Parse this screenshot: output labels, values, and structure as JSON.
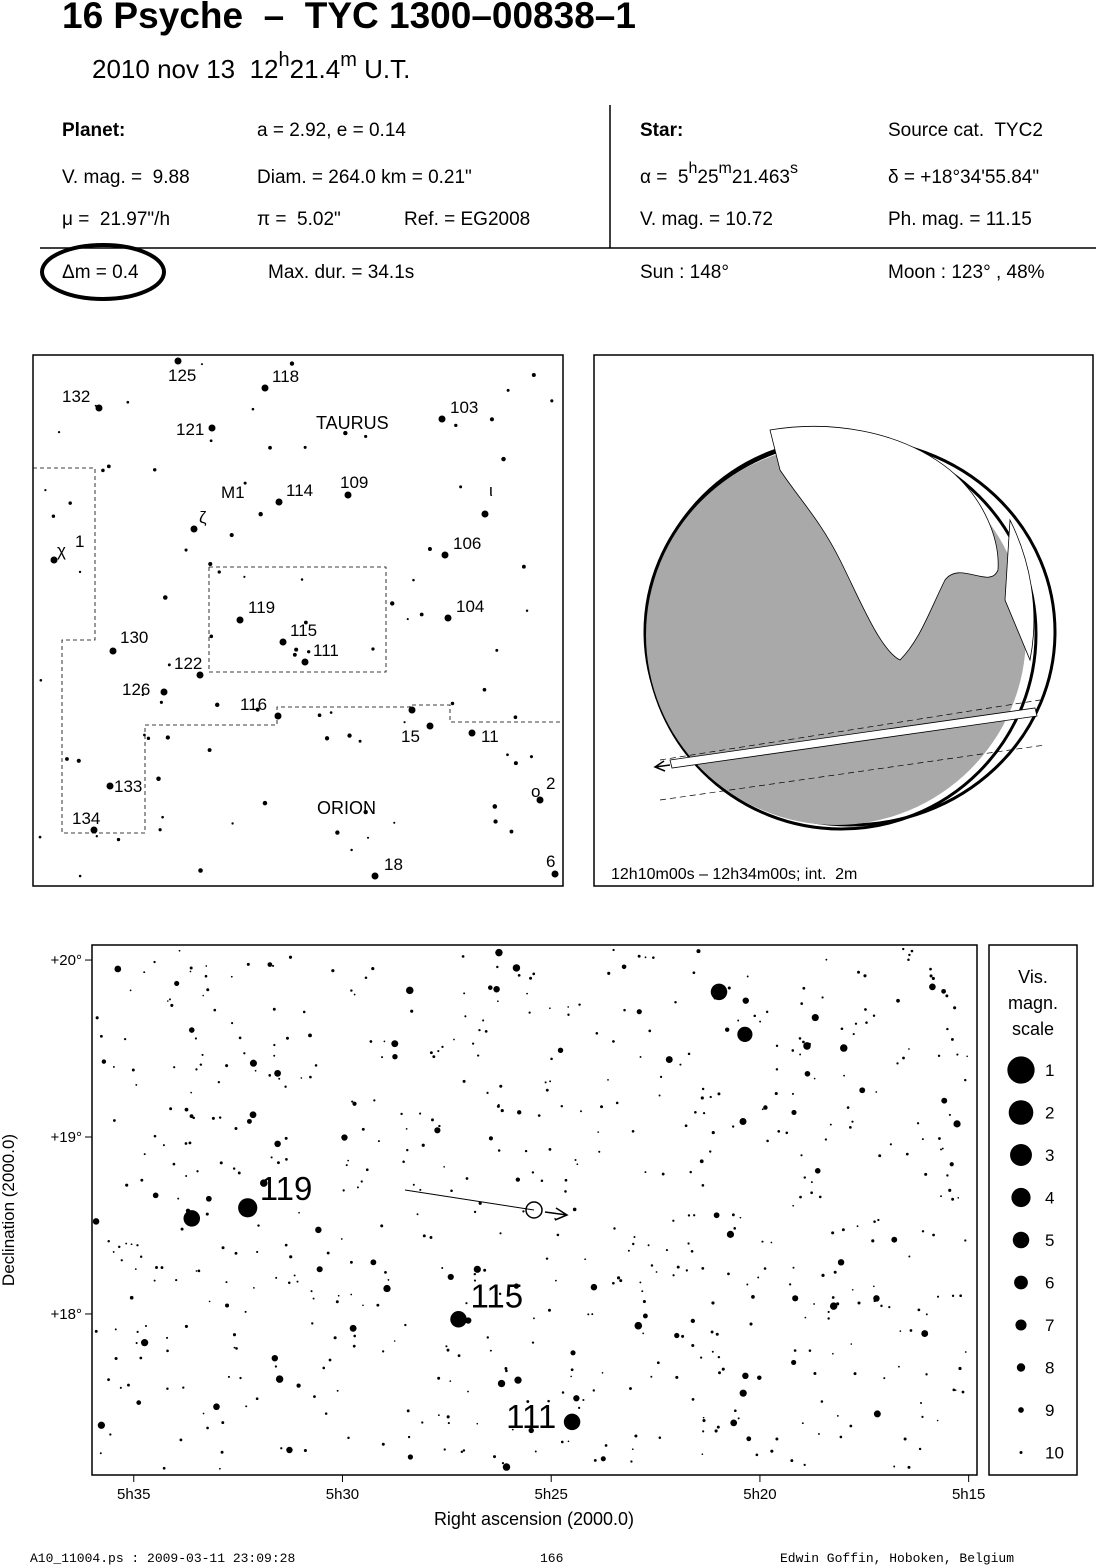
{
  "header": {
    "title": "16 Psyche  –  TYC 1300–00838–1",
    "date": "2010 nov 13  12",
    "date_h": "h",
    "date_min": "21.4",
    "date_m": "m",
    "date_ut": " U.T."
  },
  "planet": {
    "label": "Planet:",
    "orbit": "a = 2.92, e = 0.14",
    "vmag": "V. mag. =  9.88",
    "diam": "Diam. = 264.0 km = 0.21\"",
    "mu": "μ =  21.97\"/h",
    "pi": "π =  5.02\"",
    "ref": "Ref. = EG2008"
  },
  "star": {
    "label": "Star:",
    "source": "Source cat.  TYC2",
    "alpha": "α =  5",
    "alpha_h": "h",
    "alpha_min": "25",
    "alpha_m": "m",
    "alpha_sec": "21.463",
    "alpha_s": "s",
    "delta": "δ = +18°34'55.84\"",
    "vmag": "V. mag. = 10.72",
    "phmag": "Ph. mag. = 11.15"
  },
  "event": {
    "dm": "Δm = 0.4",
    "maxdur": "Max. dur. = 34.1s",
    "sun": "Sun : 148°",
    "moon": "Moon : 123° , 48%"
  },
  "finder_map": {
    "labels": [
      "125",
      "118",
      "132",
      "103",
      "121",
      "TAURUS",
      "M1",
      "114",
      "109",
      "ι",
      "ζ",
      "χ",
      "1",
      "106",
      "119",
      "115",
      "111",
      "104",
      "130",
      "122",
      "126",
      "116",
      "15",
      "11",
      "133",
      "ORION",
      "ο",
      "2",
      "134",
      "18",
      "6"
    ]
  },
  "globe": {
    "caption": "12h10m00s – 12h34m00s; int.  2m"
  },
  "chart_data": {
    "type": "scatter",
    "xlabel": "Right ascension (2000.0)",
    "ylabel": "Declination (2000.0)",
    "xlim": [
      336.0,
      314.8
    ],
    "ylim": [
      17.09,
      20.085
    ],
    "xticks": [
      {
        "value": 335,
        "label": "5h35"
      },
      {
        "value": 330,
        "label": "5h30"
      },
      {
        "value": 325,
        "label": "5h25"
      },
      {
        "value": 320,
        "label": "5h20"
      },
      {
        "value": 315,
        "label": "5h15"
      }
    ],
    "yticks": [
      {
        "value": 20,
        "label": "+20°"
      },
      {
        "value": 19,
        "label": "+19°"
      },
      {
        "value": 18,
        "label": "+18°"
      }
    ],
    "labels": [
      "119",
      "115",
      "111",
      null,
      null,
      null
    ],
    "x": [
      332.27,
      327.22,
      324.5,
      333.61,
      320.98,
      320.36
    ],
    "y": [
      18.6,
      17.97,
      17.39,
      18.54,
      19.82,
      19.58
    ],
    "sizes": [
      4,
      5,
      5,
      5,
      5,
      5.5
    ],
    "legend": {
      "title": [
        "Vis.",
        "magn.",
        "scale"
      ],
      "mags": [
        1,
        2,
        3,
        4,
        5,
        6,
        7,
        8,
        9,
        10
      ]
    }
  },
  "footer": {
    "file": "A10_11004.ps : 2009-03-11 23:09:28",
    "page": "166",
    "author": "Edwin Goffin, Hoboken, Belgium"
  }
}
